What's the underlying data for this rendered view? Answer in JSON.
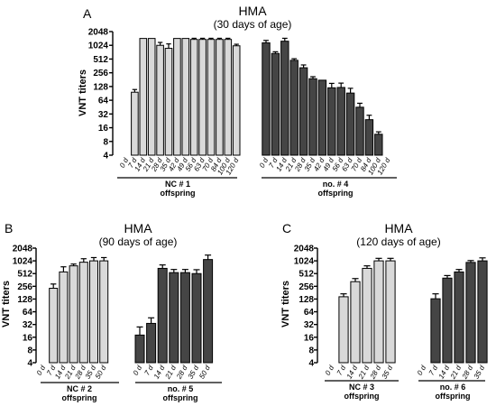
{
  "colors": {
    "light_bar": "#d9d9d9",
    "dark_bar": "#454545",
    "outline": "#000000"
  },
  "chart_data": [
    {
      "type": "bar",
      "panel": "A",
      "title": "HMA",
      "subtitle": "(30 days of age)",
      "ylabel": "VNT titers",
      "y_scale": "log2",
      "ylim": [
        4,
        2048
      ],
      "yticks": [
        "2048",
        "1024",
        "512",
        "256",
        "128",
        "64",
        "32",
        "16",
        "8",
        "4"
      ],
      "groups": [
        {
          "label1": "NC # 1",
          "label2": "offspring",
          "color": "light",
          "categories": [
            "0 d",
            "7 d",
            "14 d",
            "21 d",
            "28 d",
            "35 d",
            "42 d",
            "49 d",
            "56 d",
            "63 d",
            "70 d",
            "84 d",
            "100 d",
            "120 d"
          ],
          "values": [
            null,
            96,
            1448,
            1448,
            1024,
            880,
            1448,
            1448,
            1380,
            1380,
            1380,
            1380,
            1380,
            1000
          ],
          "errors": [
            null,
            14,
            0,
            0,
            160,
            220,
            0,
            0,
            80,
            80,
            80,
            80,
            80,
            80
          ]
        },
        {
          "label1": "no. # 4",
          "label2": "offspring",
          "color": "dark",
          "categories": [
            "0 d",
            "7 d",
            "14 d",
            "21 d",
            "28 d",
            "35 d",
            "42 d",
            "49 d",
            "56 d",
            "63 d",
            "70 d",
            "84 d",
            "100 d",
            "120 d"
          ],
          "values": [
            1160,
            680,
            1260,
            480,
            330,
            190,
            176,
            120,
            122,
            92,
            45,
            24,
            11.5,
            null
          ],
          "errors": [
            150,
            60,
            200,
            40,
            50,
            20,
            0,
            30,
            30,
            25,
            10,
            6,
            1.5,
            null
          ]
        }
      ]
    },
    {
      "type": "bar",
      "panel": "B",
      "title": "HMA",
      "subtitle": "(90 days of age)",
      "ylabel": "VNT titers",
      "y_scale": "log2",
      "ylim": [
        4,
        2048
      ],
      "yticks": [
        "2048",
        "1024",
        "512",
        "256",
        "128",
        "64",
        "32",
        "16",
        "8",
        "4"
      ],
      "groups": [
        {
          "label1": "NC # 2",
          "label2": "offspring",
          "color": "light",
          "categories": [
            "0 d",
            "7 d",
            "14 d",
            "21 d",
            "28 d",
            "35 d",
            "50 d"
          ],
          "values": [
            null,
            230,
            560,
            780,
            950,
            1024,
            1024
          ],
          "errors": [
            null,
            60,
            180,
            80,
            200,
            200,
            200
          ]
        },
        {
          "label1": "no. # 5",
          "label2": "offspring",
          "color": "dark",
          "categories": [
            "0 d",
            "7 d",
            "14 d",
            "21 d",
            "28 d",
            "35 d",
            "50 d"
          ],
          "values": [
            18,
            34,
            680,
            540,
            540,
            512,
            1100
          ],
          "errors": [
            10,
            12,
            140,
            100,
            100,
            120,
            300
          ]
        }
      ]
    },
    {
      "type": "bar",
      "panel": "C",
      "title": "HMA",
      "subtitle": "(120 days of age)",
      "ylabel": "VNT titers",
      "y_scale": "log2",
      "ylim": [
        4,
        2048
      ],
      "yticks": [
        "2048",
        "1024",
        "512",
        "256",
        "128",
        "64",
        "32",
        "16",
        "8",
        "4"
      ],
      "groups": [
        {
          "label1": "NC # 3",
          "label2": "offspring",
          "color": "light",
          "categories": [
            "0 d",
            "7 d",
            "14 d",
            "21 d",
            "28 d",
            "35 d"
          ],
          "values": [
            null,
            145,
            330,
            680,
            1024,
            1024
          ],
          "errors": [
            null,
            25,
            60,
            100,
            150,
            150
          ]
        },
        {
          "label1": "no. # 6",
          "label2": "offspring",
          "color": "dark",
          "categories": [
            "0 d",
            "7 d",
            "14 d",
            "21 d",
            "28 d",
            "35 d"
          ],
          "values": [
            null,
            130,
            400,
            560,
            940,
            1024
          ],
          "errors": [
            null,
            40,
            60,
            80,
            100,
            180
          ]
        }
      ]
    }
  ]
}
